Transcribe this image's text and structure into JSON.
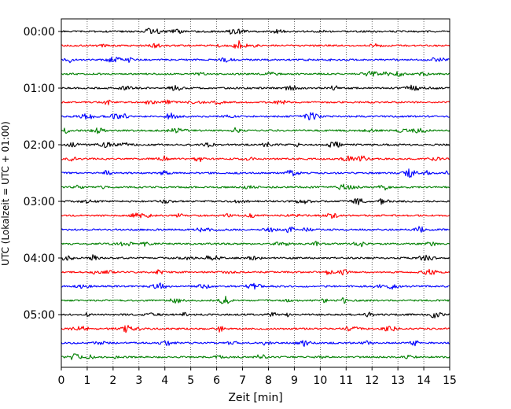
{
  "chart_data": {
    "type": "line",
    "title": "",
    "xlabel": "Zeit  [min]",
    "ylabel": "UTC (Lokalzeit = UTC + 01:00)",
    "xlim": [
      0,
      15
    ],
    "x_ticks": [
      0,
      1,
      2,
      3,
      4,
      5,
      6,
      7,
      8,
      9,
      10,
      11,
      12,
      13,
      14,
      15
    ],
    "x_tick_labels": [
      "0",
      "1",
      "2",
      "3",
      "4",
      "5",
      "6",
      "7",
      "8",
      "9",
      "10",
      "11",
      "12",
      "13",
      "14",
      "15"
    ],
    "y_tick_labels": [
      "00:00",
      "01:00",
      "02:00",
      "03:00",
      "04:00",
      "05:00"
    ],
    "traces_per_hour": 4,
    "trace_minutes": 15,
    "trace_colors": [
      "#000000",
      "#ff0000",
      "#0000ff",
      "#008000"
    ],
    "grid": "vertical dotted",
    "legend": "none",
    "series": [
      {
        "start": "00:00",
        "color": "#000000"
      },
      {
        "start": "00:15",
        "color": "#ff0000"
      },
      {
        "start": "00:30",
        "color": "#0000ff"
      },
      {
        "start": "00:45",
        "color": "#008000"
      },
      {
        "start": "01:00",
        "color": "#000000"
      },
      {
        "start": "01:15",
        "color": "#ff0000"
      },
      {
        "start": "01:30",
        "color": "#0000ff"
      },
      {
        "start": "01:45",
        "color": "#008000"
      },
      {
        "start": "02:00",
        "color": "#000000"
      },
      {
        "start": "02:15",
        "color": "#ff0000"
      },
      {
        "start": "02:30",
        "color": "#0000ff"
      },
      {
        "start": "02:45",
        "color": "#008000"
      },
      {
        "start": "03:00",
        "color": "#000000"
      },
      {
        "start": "03:15",
        "color": "#ff0000"
      },
      {
        "start": "03:30",
        "color": "#0000ff"
      },
      {
        "start": "03:45",
        "color": "#008000"
      },
      {
        "start": "04:00",
        "color": "#000000"
      },
      {
        "start": "04:15",
        "color": "#ff0000"
      },
      {
        "start": "04:30",
        "color": "#0000ff"
      },
      {
        "start": "04:45",
        "color": "#008000"
      },
      {
        "start": "05:00",
        "color": "#000000"
      },
      {
        "start": "05:15",
        "color": "#ff0000"
      },
      {
        "start": "05:30",
        "color": "#0000ff"
      },
      {
        "start": "05:45",
        "color": "#008000"
      }
    ]
  }
}
